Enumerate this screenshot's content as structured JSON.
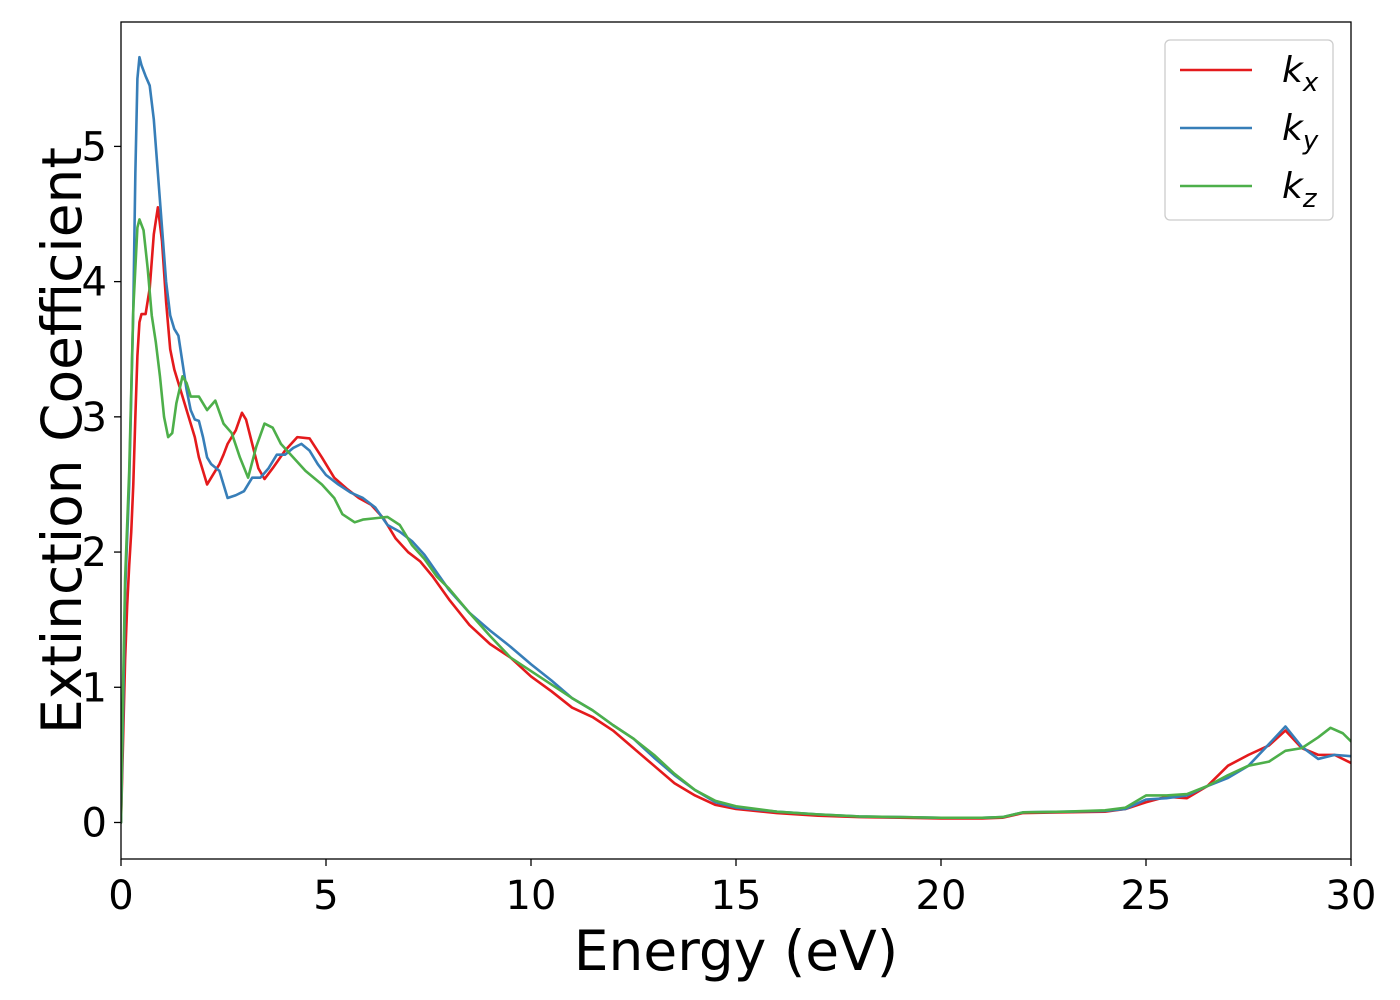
{
  "chart_data": {
    "type": "line",
    "xlabel": "Energy (eV)",
    "ylabel": "Extinction Coefficient",
    "xlim": [
      0,
      30
    ],
    "ylim": [
      -0.27,
      5.92
    ],
    "xticks": [
      0,
      5,
      10,
      15,
      20,
      25,
      30
    ],
    "yticks": [
      0,
      1,
      2,
      3,
      4,
      5
    ],
    "grid": false,
    "legend_position": "top-right",
    "series": [
      {
        "name": "k_x",
        "legend_main": "k",
        "legend_sub": "x",
        "color": "#e41a1c",
        "points": [
          [
            0,
            0
          ],
          [
            0.05,
            0.6
          ],
          [
            0.1,
            1.2
          ],
          [
            0.15,
            1.6
          ],
          [
            0.2,
            1.9
          ],
          [
            0.25,
            2.15
          ],
          [
            0.3,
            2.5
          ],
          [
            0.35,
            3.0
          ],
          [
            0.4,
            3.45
          ],
          [
            0.45,
            3.7
          ],
          [
            0.5,
            3.76
          ],
          [
            0.6,
            3.76
          ],
          [
            0.7,
            3.95
          ],
          [
            0.8,
            4.35
          ],
          [
            0.9,
            4.55
          ],
          [
            1.0,
            4.3
          ],
          [
            1.1,
            3.85
          ],
          [
            1.2,
            3.5
          ],
          [
            1.3,
            3.35
          ],
          [
            1.4,
            3.25
          ],
          [
            1.5,
            3.15
          ],
          [
            1.6,
            3.05
          ],
          [
            1.7,
            2.95
          ],
          [
            1.8,
            2.85
          ],
          [
            1.9,
            2.7
          ],
          [
            2.0,
            2.6
          ],
          [
            2.1,
            2.5
          ],
          [
            2.2,
            2.55
          ],
          [
            2.4,
            2.65
          ],
          [
            2.5,
            2.72
          ],
          [
            2.6,
            2.8
          ],
          [
            2.8,
            2.9
          ],
          [
            2.95,
            3.03
          ],
          [
            3.05,
            2.98
          ],
          [
            3.2,
            2.8
          ],
          [
            3.35,
            2.62
          ],
          [
            3.5,
            2.54
          ],
          [
            3.7,
            2.62
          ],
          [
            4.0,
            2.75
          ],
          [
            4.3,
            2.85
          ],
          [
            4.6,
            2.84
          ],
          [
            4.9,
            2.7
          ],
          [
            5.2,
            2.55
          ],
          [
            5.5,
            2.47
          ],
          [
            5.8,
            2.4
          ],
          [
            6.1,
            2.35
          ],
          [
            6.4,
            2.25
          ],
          [
            6.7,
            2.1
          ],
          [
            7.0,
            2.0
          ],
          [
            7.3,
            1.93
          ],
          [
            7.6,
            1.82
          ],
          [
            8.0,
            1.65
          ],
          [
            8.5,
            1.46
          ],
          [
            9.0,
            1.32
          ],
          [
            9.5,
            1.22
          ],
          [
            10.0,
            1.08
          ],
          [
            10.5,
            0.97
          ],
          [
            11.0,
            0.85
          ],
          [
            11.5,
            0.78
          ],
          [
            12.0,
            0.68
          ],
          [
            12.5,
            0.55
          ],
          [
            13.0,
            0.42
          ],
          [
            13.5,
            0.29
          ],
          [
            14.0,
            0.2
          ],
          [
            14.5,
            0.13
          ],
          [
            15.0,
            0.1
          ],
          [
            16.0,
            0.07
          ],
          [
            17.0,
            0.05
          ],
          [
            18.0,
            0.04
          ],
          [
            19.0,
            0.035
          ],
          [
            20.0,
            0.03
          ],
          [
            21.0,
            0.03
          ],
          [
            21.5,
            0.035
          ],
          [
            22.0,
            0.07
          ],
          [
            23.0,
            0.075
          ],
          [
            24.0,
            0.08
          ],
          [
            24.5,
            0.1
          ],
          [
            25.0,
            0.15
          ],
          [
            25.5,
            0.19
          ],
          [
            26.0,
            0.18
          ],
          [
            26.5,
            0.27
          ],
          [
            27.0,
            0.42
          ],
          [
            27.5,
            0.5
          ],
          [
            28.0,
            0.57
          ],
          [
            28.4,
            0.68
          ],
          [
            28.8,
            0.55
          ],
          [
            29.2,
            0.5
          ],
          [
            29.6,
            0.5
          ],
          [
            30.0,
            0.44
          ]
        ]
      },
      {
        "name": "k_y",
        "legend_main": "k",
        "legend_sub": "y",
        "color": "#377eb8",
        "points": [
          [
            0,
            0
          ],
          [
            0.05,
            0.8
          ],
          [
            0.1,
            1.7
          ],
          [
            0.2,
            2.5
          ],
          [
            0.3,
            3.8
          ],
          [
            0.35,
            4.8
          ],
          [
            0.4,
            5.5
          ],
          [
            0.45,
            5.66
          ],
          [
            0.5,
            5.6
          ],
          [
            0.6,
            5.52
          ],
          [
            0.7,
            5.45
          ],
          [
            0.8,
            5.2
          ],
          [
            0.9,
            4.8
          ],
          [
            1.0,
            4.4
          ],
          [
            1.1,
            4.0
          ],
          [
            1.2,
            3.75
          ],
          [
            1.3,
            3.65
          ],
          [
            1.4,
            3.6
          ],
          [
            1.5,
            3.4
          ],
          [
            1.6,
            3.2
          ],
          [
            1.7,
            3.05
          ],
          [
            1.8,
            2.98
          ],
          [
            1.9,
            2.97
          ],
          [
            2.0,
            2.85
          ],
          [
            2.1,
            2.7
          ],
          [
            2.2,
            2.65
          ],
          [
            2.4,
            2.6
          ],
          [
            2.6,
            2.4
          ],
          [
            2.8,
            2.42
          ],
          [
            3.0,
            2.45
          ],
          [
            3.2,
            2.55
          ],
          [
            3.4,
            2.55
          ],
          [
            3.6,
            2.62
          ],
          [
            3.8,
            2.72
          ],
          [
            4.0,
            2.72
          ],
          [
            4.2,
            2.77
          ],
          [
            4.4,
            2.8
          ],
          [
            4.6,
            2.75
          ],
          [
            4.8,
            2.65
          ],
          [
            5.0,
            2.57
          ],
          [
            5.3,
            2.5
          ],
          [
            5.6,
            2.44
          ],
          [
            5.9,
            2.4
          ],
          [
            6.2,
            2.33
          ],
          [
            6.5,
            2.2
          ],
          [
            6.8,
            2.15
          ],
          [
            7.1,
            2.08
          ],
          [
            7.4,
            1.98
          ],
          [
            7.7,
            1.85
          ],
          [
            8.0,
            1.72
          ],
          [
            8.5,
            1.55
          ],
          [
            9.0,
            1.42
          ],
          [
            9.5,
            1.3
          ],
          [
            10.0,
            1.17
          ],
          [
            10.5,
            1.05
          ],
          [
            11.0,
            0.92
          ],
          [
            11.5,
            0.83
          ],
          [
            12.0,
            0.72
          ],
          [
            12.5,
            0.62
          ],
          [
            13.0,
            0.48
          ],
          [
            13.5,
            0.35
          ],
          [
            14.0,
            0.24
          ],
          [
            14.5,
            0.15
          ],
          [
            15.0,
            0.11
          ],
          [
            16.0,
            0.08
          ],
          [
            17.0,
            0.06
          ],
          [
            18.0,
            0.045
          ],
          [
            19.0,
            0.04
          ],
          [
            20.0,
            0.035
          ],
          [
            21.0,
            0.035
          ],
          [
            21.5,
            0.04
          ],
          [
            22.0,
            0.075
          ],
          [
            23.0,
            0.08
          ],
          [
            24.0,
            0.085
          ],
          [
            24.5,
            0.1
          ],
          [
            25.0,
            0.17
          ],
          [
            25.5,
            0.18
          ],
          [
            26.0,
            0.2
          ],
          [
            26.5,
            0.27
          ],
          [
            27.0,
            0.33
          ],
          [
            27.5,
            0.42
          ],
          [
            28.0,
            0.58
          ],
          [
            28.4,
            0.71
          ],
          [
            28.8,
            0.56
          ],
          [
            29.2,
            0.47
          ],
          [
            29.6,
            0.5
          ],
          [
            30.0,
            0.49
          ]
        ]
      },
      {
        "name": "k_z",
        "legend_main": "k",
        "legend_sub": "z",
        "color": "#4daf4a",
        "points": [
          [
            0,
            0
          ],
          [
            0.05,
            1.0
          ],
          [
            0.1,
            1.8
          ],
          [
            0.2,
            2.6
          ],
          [
            0.3,
            3.8
          ],
          [
            0.4,
            4.4
          ],
          [
            0.45,
            4.46
          ],
          [
            0.55,
            4.38
          ],
          [
            0.65,
            4.1
          ],
          [
            0.75,
            3.75
          ],
          [
            0.85,
            3.55
          ],
          [
            0.95,
            3.3
          ],
          [
            1.05,
            3.0
          ],
          [
            1.15,
            2.85
          ],
          [
            1.25,
            2.88
          ],
          [
            1.35,
            3.1
          ],
          [
            1.5,
            3.3
          ],
          [
            1.6,
            3.25
          ],
          [
            1.7,
            3.15
          ],
          [
            1.9,
            3.15
          ],
          [
            2.1,
            3.05
          ],
          [
            2.3,
            3.12
          ],
          [
            2.5,
            2.95
          ],
          [
            2.7,
            2.88
          ],
          [
            2.9,
            2.7
          ],
          [
            3.1,
            2.55
          ],
          [
            3.3,
            2.78
          ],
          [
            3.5,
            2.95
          ],
          [
            3.7,
            2.92
          ],
          [
            3.9,
            2.8
          ],
          [
            4.2,
            2.7
          ],
          [
            4.5,
            2.6
          ],
          [
            4.9,
            2.5
          ],
          [
            5.2,
            2.4
          ],
          [
            5.4,
            2.28
          ],
          [
            5.7,
            2.22
          ],
          [
            5.9,
            2.24
          ],
          [
            6.2,
            2.25
          ],
          [
            6.5,
            2.26
          ],
          [
            6.8,
            2.2
          ],
          [
            7.1,
            2.05
          ],
          [
            7.4,
            1.95
          ],
          [
            7.7,
            1.82
          ],
          [
            8.0,
            1.73
          ],
          [
            8.5,
            1.55
          ],
          [
            9.0,
            1.38
          ],
          [
            9.5,
            1.22
          ],
          [
            10.0,
            1.12
          ],
          [
            10.5,
            1.02
          ],
          [
            11.0,
            0.92
          ],
          [
            11.5,
            0.83
          ],
          [
            12.0,
            0.72
          ],
          [
            12.5,
            0.62
          ],
          [
            13.0,
            0.5
          ],
          [
            13.5,
            0.36
          ],
          [
            14.0,
            0.24
          ],
          [
            14.5,
            0.16
          ],
          [
            15.0,
            0.12
          ],
          [
            16.0,
            0.08
          ],
          [
            17.0,
            0.06
          ],
          [
            18.0,
            0.045
          ],
          [
            19.0,
            0.04
          ],
          [
            20.0,
            0.035
          ],
          [
            21.0,
            0.035
          ],
          [
            21.5,
            0.04
          ],
          [
            22.0,
            0.075
          ],
          [
            23.0,
            0.08
          ],
          [
            24.0,
            0.09
          ],
          [
            24.5,
            0.11
          ],
          [
            25.0,
            0.2
          ],
          [
            25.5,
            0.2
          ],
          [
            26.0,
            0.21
          ],
          [
            26.5,
            0.27
          ],
          [
            27.0,
            0.35
          ],
          [
            27.5,
            0.42
          ],
          [
            28.0,
            0.45
          ],
          [
            28.4,
            0.53
          ],
          [
            28.8,
            0.55
          ],
          [
            29.2,
            0.63
          ],
          [
            29.5,
            0.7
          ],
          [
            29.8,
            0.66
          ],
          [
            30.0,
            0.6
          ]
        ]
      }
    ]
  }
}
